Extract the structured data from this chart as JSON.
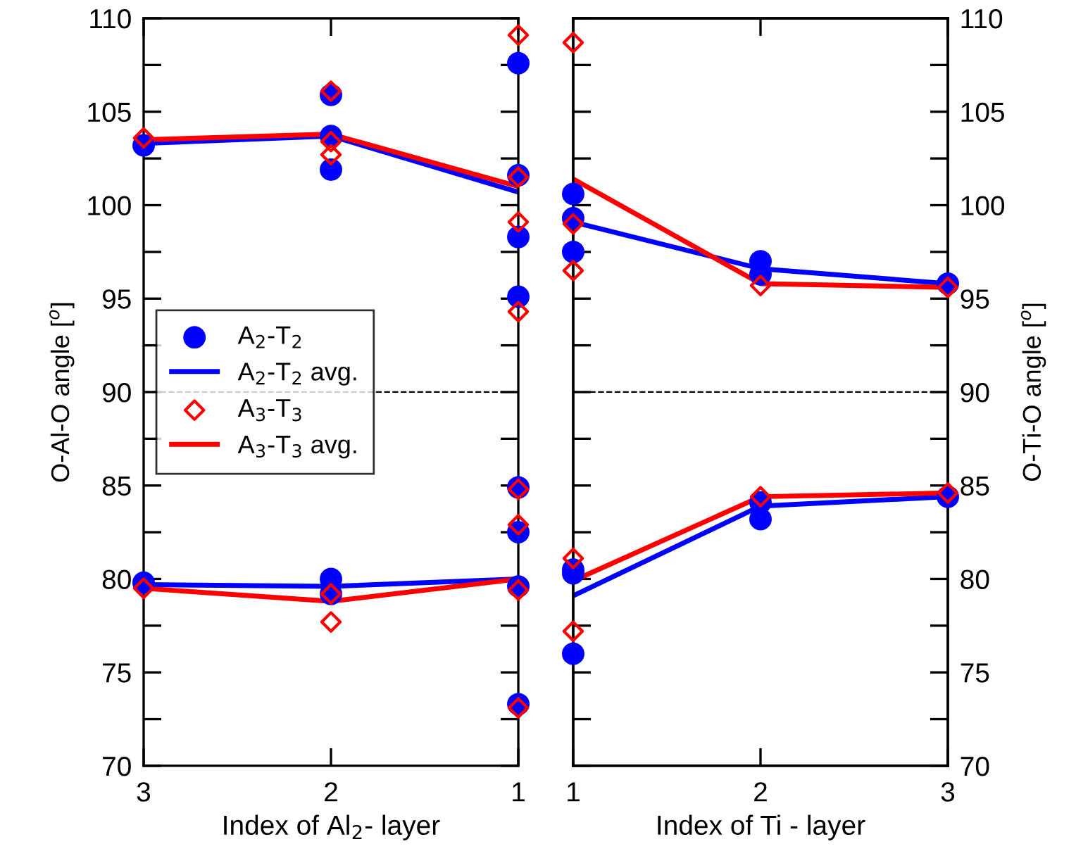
{
  "chart_data": [
    {
      "type": "scatter",
      "xlabel": "Index of Al$_{2}$- layer",
      "ylabel": "O-Al-O angle [$^{o}$]",
      "xlim": [
        3,
        1
      ],
      "xticks": [
        3,
        2,
        1
      ],
      "ylim": [
        70,
        110
      ],
      "yticks": [
        70,
        {
          "value": 72.5,
          "label": null
        },
        75,
        {
          "value": 77.5,
          "label": null
        },
        80,
        {
          "value": 82.5,
          "label": null
        },
        85,
        {
          "value": 87.5,
          "label": null
        },
        90,
        {
          "value": 92.5,
          "label": null
        },
        95,
        {
          "value": 97.5,
          "label": null
        },
        100,
        {
          "value": 102.5,
          "label": null
        },
        105,
        {
          "value": 107.5,
          "label": null
        },
        110
      ],
      "legend": "left",
      "ref_lines": [
        {
          "axis": "y",
          "value": 90,
          "color": "#000000",
          "line_style": "dashed"
        }
      ],
      "series": [
        {
          "name": "A$_{2}$-T$_{2}$",
          "type": "scatter",
          "marker": "circle",
          "color": "#0000ff",
          "x": [
            3,
            2,
            2,
            2,
            1,
            1,
            1,
            1,
            3,
            2,
            2,
            1,
            1,
            1,
            1
          ],
          "values": [
            103.2,
            105.9,
            103.7,
            101.9,
            107.6,
            101.6,
            98.3,
            95.1,
            79.8,
            80.0,
            79.2,
            84.9,
            82.5,
            79.6,
            73.3
          ]
        },
        {
          "name": "A$_{2}$-T$_{2}$ avg.",
          "type": "line",
          "color": "#0000ff",
          "x": [
            3,
            2,
            1
          ],
          "values": [
            103.3,
            103.7,
            100.7
          ]
        },
        {
          "type": "line",
          "color": "#0000ff",
          "x": [
            3,
            2,
            1
          ],
          "values": [
            79.7,
            79.6,
            80.0
          ]
        },
        {
          "name": "A$_{3}$-T$_{3}$",
          "type": "scatter",
          "marker": "diamond",
          "color": "#ff0000",
          "x": [
            3,
            2,
            2,
            2,
            1,
            1,
            1,
            1,
            3,
            2,
            2,
            1,
            1,
            1,
            1
          ],
          "values": [
            103.6,
            106.1,
            103.4,
            102.7,
            109.1,
            101.5,
            99.1,
            94.3,
            79.5,
            79.2,
            77.7,
            84.8,
            82.9,
            79.4,
            73.1
          ]
        },
        {
          "name": "A$_{3}$-T$_{3}$ avg.",
          "type": "line",
          "color": "#ff0000",
          "x": [
            3,
            2,
            1
          ],
          "values": [
            103.5,
            103.8,
            101.0
          ]
        },
        {
          "type": "line",
          "color": "#ff0000",
          "x": [
            3,
            2,
            1
          ],
          "values": [
            79.5,
            78.8,
            80.0
          ]
        }
      ]
    },
    {
      "type": "scatter",
      "xlabel": "Index of Ti - layer",
      "y2label": "O-Ti-O angle [$^{o}$]",
      "xlim": [
        1,
        3
      ],
      "xticks": [
        1,
        2,
        3
      ],
      "y2lim": [
        70,
        110
      ],
      "y2ticks": [
        70,
        {
          "value": 72.5,
          "label": null
        },
        75,
        {
          "value": 77.5,
          "label": null
        },
        80,
        {
          "value": 82.5,
          "label": null
        },
        85,
        {
          "value": 87.5,
          "label": null
        },
        90,
        {
          "value": 92.5,
          "label": null
        },
        95,
        {
          "value": 97.5,
          "label": null
        },
        100,
        {
          "value": 102.5,
          "label": null
        },
        105,
        {
          "value": 107.5,
          "label": null
        },
        110
      ],
      "ref_lines": [
        {
          "axis": "y2",
          "value": 90,
          "color": "#000000",
          "line_style": "dashed"
        }
      ],
      "series": [
        {
          "type": "scatter",
          "axis": "y2",
          "marker": "circle",
          "color": "#0000ff",
          "x": [
            1,
            1,
            1,
            2,
            2,
            3,
            1,
            1,
            1,
            2,
            2,
            3
          ],
          "values": [
            100.6,
            99.3,
            97.5,
            97.0,
            96.3,
            95.8,
            80.5,
            80.3,
            76.0,
            84.1,
            83.2,
            84.4
          ]
        },
        {
          "type": "line",
          "axis": "y2",
          "color": "#0000ff",
          "x": [
            1,
            2,
            3
          ],
          "values": [
            99.1,
            96.6,
            95.8
          ]
        },
        {
          "type": "line",
          "axis": "y2",
          "color": "#0000ff",
          "x": [
            1,
            2,
            3
          ],
          "values": [
            79.1,
            83.9,
            84.4
          ]
        },
        {
          "type": "scatter",
          "axis": "y2",
          "marker": "diamond",
          "color": "#ff0000",
          "x": [
            1,
            1,
            1,
            2,
            3,
            1,
            1,
            2,
            3
          ],
          "values": [
            108.7,
            99.0,
            96.5,
            95.7,
            95.6,
            81.1,
            77.2,
            84.4,
            84.6
          ]
        },
        {
          "type": "line",
          "axis": "y2",
          "color": "#ff0000",
          "x": [
            1,
            2,
            3
          ],
          "values": [
            101.4,
            95.8,
            95.6
          ]
        },
        {
          "type": "line",
          "axis": "y2",
          "color": "#ff0000",
          "x": [
            1,
            2,
            3
          ],
          "values": [
            79.9,
            84.4,
            84.6
          ]
        }
      ]
    }
  ]
}
